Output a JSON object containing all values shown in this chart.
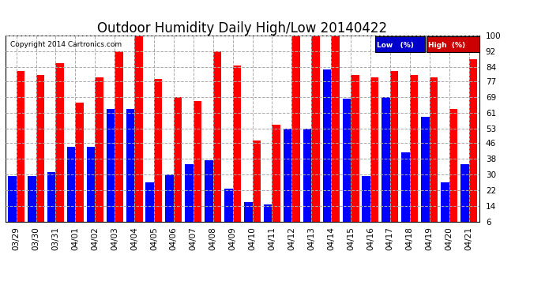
{
  "title": "Outdoor Humidity Daily High/Low 20140422",
  "copyright": "Copyright 2014 Cartronics.com",
  "dates": [
    "03/29",
    "03/30",
    "03/31",
    "04/01",
    "04/02",
    "04/03",
    "04/04",
    "04/05",
    "04/06",
    "04/07",
    "04/08",
    "04/09",
    "04/10",
    "04/11",
    "04/12",
    "04/13",
    "04/14",
    "04/15",
    "04/16",
    "04/17",
    "04/18",
    "04/19",
    "04/20",
    "04/21"
  ],
  "high": [
    82,
    80,
    86,
    66,
    79,
    92,
    100,
    78,
    69,
    67,
    92,
    85,
    47,
    55,
    100,
    100,
    100,
    80,
    79,
    82,
    80,
    79,
    63,
    88
  ],
  "low": [
    29,
    29,
    31,
    44,
    44,
    63,
    63,
    26,
    30,
    35,
    37,
    23,
    16,
    15,
    53,
    53,
    83,
    68,
    29,
    69,
    41,
    59,
    26,
    35
  ],
  "bg_color": "#ffffff",
  "high_color": "#ff0000",
  "low_color": "#0000ff",
  "grid_color": "#aaaaaa",
  "yticks": [
    6,
    14,
    22,
    30,
    38,
    46,
    53,
    61,
    69,
    77,
    84,
    92,
    100
  ],
  "ymin": 6,
  "ymax": 100,
  "title_fontsize": 12,
  "tick_fontsize": 7.5,
  "legend_low_color": "#0000cc",
  "legend_high_color": "#cc0000"
}
